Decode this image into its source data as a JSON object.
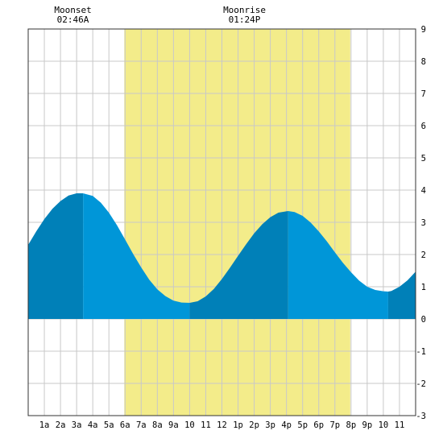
{
  "colors": {
    "background": "#ffffff",
    "daylight": "#f3ec8a",
    "grid": "#c8c8c8",
    "tide_rising": "#0080b8",
    "tide_falling": "#0096d8",
    "border": "#333333"
  },
  "moon_events": [
    {
      "label": "Moonset",
      "time": "02:46A",
      "x": 2.77
    },
    {
      "label": "Moonrise",
      "time": "01:24P",
      "x": 13.4
    }
  ],
  "chart_data": {
    "type": "area",
    "title": "",
    "xlabel": "",
    "ylabel": "",
    "xlim": [
      0,
      24
    ],
    "ylim": [
      -3,
      9
    ],
    "y_axis_side": "right",
    "yticks": [
      -3,
      -2,
      -1,
      0,
      1,
      2,
      3,
      4,
      5,
      6,
      7,
      8,
      9
    ],
    "xticks": [
      {
        "x": 1,
        "label": "1a"
      },
      {
        "x": 2,
        "label": "2a"
      },
      {
        "x": 3,
        "label": "3a"
      },
      {
        "x": 4,
        "label": "4a"
      },
      {
        "x": 5,
        "label": "5a"
      },
      {
        "x": 6,
        "label": "6a"
      },
      {
        "x": 7,
        "label": "7a"
      },
      {
        "x": 8,
        "label": "8a"
      },
      {
        "x": 9,
        "label": "9a"
      },
      {
        "x": 10,
        "label": "10"
      },
      {
        "x": 11,
        "label": "11"
      },
      {
        "x": 12,
        "label": "12"
      },
      {
        "x": 13,
        "label": "1p"
      },
      {
        "x": 14,
        "label": "2p"
      },
      {
        "x": 15,
        "label": "3p"
      },
      {
        "x": 16,
        "label": "4p"
      },
      {
        "x": 17,
        "label": "5p"
      },
      {
        "x": 18,
        "label": "6p"
      },
      {
        "x": 19,
        "label": "7p"
      },
      {
        "x": 20,
        "label": "8p"
      },
      {
        "x": 21,
        "label": "9p"
      },
      {
        "x": 22,
        "label": "10"
      },
      {
        "x": 23,
        "label": "11"
      }
    ],
    "grid": true,
    "daylight": {
      "start": 5.95,
      "end": 19.95
    },
    "tide_extremes": [
      {
        "x": 3.4,
        "y": 3.9,
        "kind": "high"
      },
      {
        "x": 10.0,
        "y": 0.5,
        "kind": "low"
      },
      {
        "x": 16.1,
        "y": 3.35,
        "kind": "high"
      },
      {
        "x": 22.3,
        "y": 0.85,
        "kind": "low"
      }
    ],
    "series": [
      {
        "values_x": [
          0,
          0.5,
          1,
          1.5,
          2,
          2.5,
          3,
          3.4,
          4,
          4.5,
          5,
          5.5,
          6,
          6.5,
          7,
          7.5,
          8,
          8.5,
          9,
          9.5,
          10,
          10.5,
          11,
          11.5,
          12,
          12.5,
          13,
          13.5,
          14,
          14.5,
          15,
          15.5,
          16.1,
          16.5,
          17,
          17.5,
          18,
          18.5,
          19,
          19.5,
          20,
          20.5,
          21,
          21.5,
          22,
          22.3,
          22.5,
          23,
          23.5,
          24
        ],
        "values_y": [
          2.3,
          2.72,
          3.1,
          3.42,
          3.66,
          3.83,
          3.9,
          3.9,
          3.82,
          3.61,
          3.3,
          2.91,
          2.47,
          2.02,
          1.6,
          1.22,
          0.92,
          0.71,
          0.57,
          0.51,
          0.5,
          0.55,
          0.7,
          0.93,
          1.24,
          1.59,
          1.96,
          2.32,
          2.66,
          2.94,
          3.16,
          3.3,
          3.35,
          3.32,
          3.2,
          2.99,
          2.72,
          2.41,
          2.07,
          1.74,
          1.45,
          1.19,
          1.0,
          0.9,
          0.86,
          0.85,
          0.87,
          1.0,
          1.2,
          1.47
        ]
      }
    ]
  }
}
